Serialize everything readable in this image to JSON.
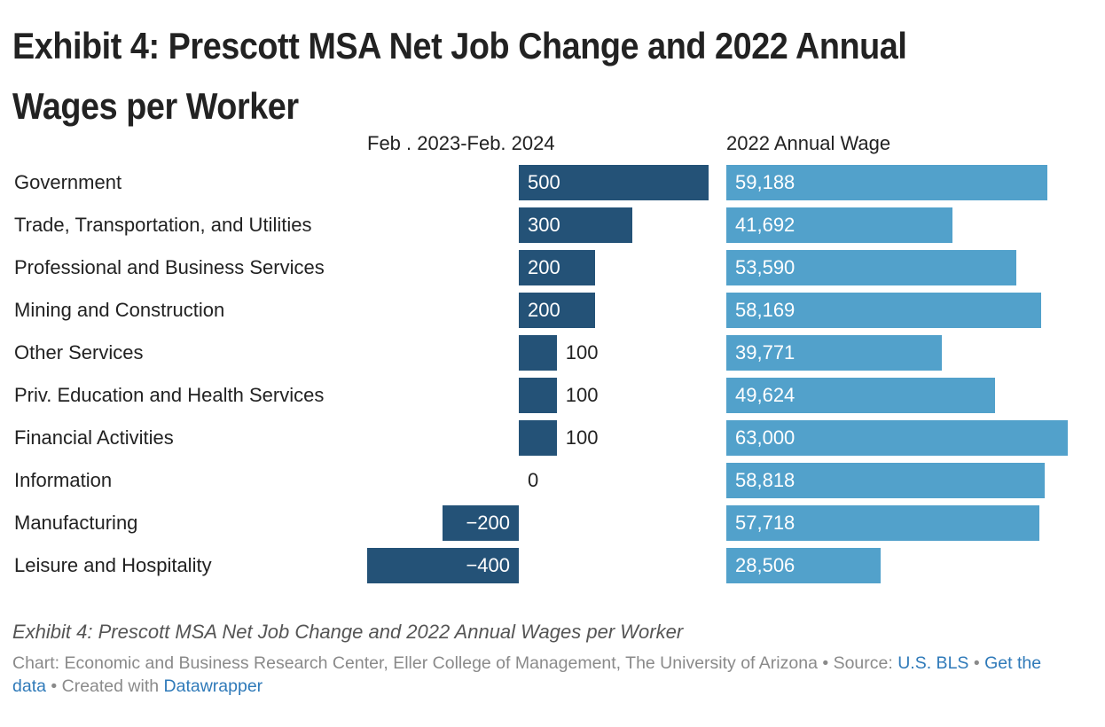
{
  "chart_data": {
    "type": "bar",
    "title": "Exhibit 4: Prescott MSA Net Job Change and 2022 Annual Wages per Worker",
    "categories": [
      "Government",
      "Trade, Transportation, and Utilities",
      "Professional and Business Services",
      "Mining and Construction",
      "Other Services",
      "Priv. Education and Health Services",
      "Financial Activities",
      "Information",
      "Manufacturing",
      "Leisure and Hospitality"
    ],
    "series": [
      {
        "name": "Feb . 2023-Feb. 2024",
        "values": [
          500,
          300,
          200,
          200,
          100,
          100,
          100,
          0,
          -200,
          -400
        ],
        "labels": [
          "500",
          "300",
          "200",
          "200",
          "100",
          "100",
          "100",
          "0",
          "−200",
          "−400"
        ],
        "color": "#245277",
        "xlim": [
          -400,
          500
        ]
      },
      {
        "name": "2022 Annual Wage",
        "values": [
          59188,
          41692,
          53590,
          58169,
          39771,
          49624,
          63000,
          58818,
          57718,
          28506
        ],
        "labels": [
          "59,188",
          "41,692",
          "53,590",
          "58,169",
          "39,771",
          "49,624",
          "63,000",
          "58,818",
          "57,718",
          "28,506"
        ],
        "color": "#52a1cb",
        "xlim": [
          0,
          63000
        ]
      }
    ],
    "grid": false,
    "legend": "none"
  },
  "caption": "Exhibit 4: Prescott MSA Net Job Change and 2022 Annual Wages per Worker",
  "notes": {
    "prefix": "Chart: Economic and Business Research Center, Eller College of Management, The University of Arizona • Source: ",
    "source_link": "U.S. BLS",
    "sep1": " • ",
    "data_link": "Get the data",
    "sep2": " • Created with ",
    "tool_link": "Datawrapper"
  },
  "colors": {
    "jobs_bar": "#245277",
    "wage_bar": "#52a1cb",
    "bar_text": "#ffffff",
    "link": "#2f7ab9"
  }
}
